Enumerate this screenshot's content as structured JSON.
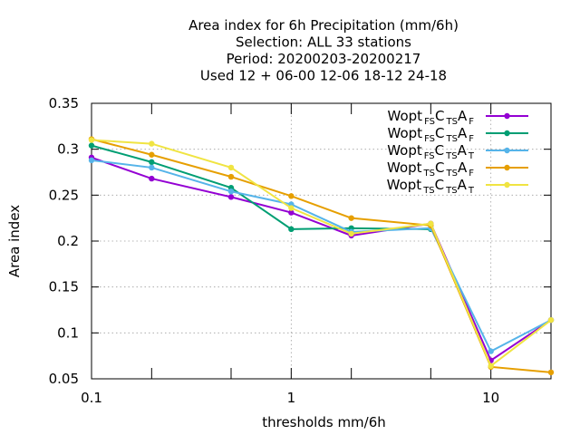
{
  "chart_data": {
    "type": "line",
    "title_lines": [
      "Area index  for 6h Precipitation (mm/6h)",
      "Selection: ALL     33 stations",
      "Period: 20200203-20200217",
      "Used  12 + 06-00 12-06 18-12 24-18"
    ],
    "xlabel": "thresholds mm/6h",
    "ylabel": "Area index",
    "x_scale": "log",
    "xlim": [
      0.1,
      20
    ],
    "ylim": [
      0.05,
      0.35
    ],
    "x_ticks": [
      0.1,
      1,
      10
    ],
    "x_tick_labels": [
      "0.1",
      "1",
      "10"
    ],
    "x_minor_ticks": [
      0.2,
      0.5,
      2,
      5,
      20
    ],
    "y_ticks": [
      0.05,
      0.1,
      0.15,
      0.2,
      0.25,
      0.3,
      0.35
    ],
    "y_tick_labels": [
      "0.05",
      "0.1",
      "0.15",
      "0.2",
      "0.25",
      "0.3",
      "0.35"
    ],
    "grid": true,
    "legend_position": "top-right",
    "x": [
      0.1,
      0.2,
      0.5,
      1,
      2,
      5,
      10,
      20
    ],
    "series": [
      {
        "name": "Wopt FS C TS A F",
        "legend": [
          {
            "t": "Wopt",
            "sub": false
          },
          {
            "t": "FS",
            "sub": true
          },
          {
            "t": "C",
            "sub": false
          },
          {
            "t": "TS",
            "sub": true
          },
          {
            "t": "A",
            "sub": false
          },
          {
            "t": "F",
            "sub": true
          }
        ],
        "color": "#9400d3",
        "values": [
          0.291,
          0.268,
          0.248,
          0.231,
          0.206,
          0.219,
          0.07,
          0.114
        ]
      },
      {
        "name": "Wopt FS C TS A F",
        "legend": [
          {
            "t": "Wopt",
            "sub": false
          },
          {
            "t": "FS",
            "sub": true
          },
          {
            "t": "C",
            "sub": false
          },
          {
            "t": "TS",
            "sub": true
          },
          {
            "t": "A",
            "sub": false
          },
          {
            "t": "F",
            "sub": true
          }
        ],
        "color": "#009e73",
        "values": [
          0.304,
          0.286,
          0.258,
          0.213,
          0.214,
          0.213,
          null,
          null
        ]
      },
      {
        "name": "Wopt FS C TS A T",
        "legend": [
          {
            "t": "Wopt",
            "sub": false
          },
          {
            "t": "FS",
            "sub": true
          },
          {
            "t": "C",
            "sub": false
          },
          {
            "t": "TS",
            "sub": true
          },
          {
            "t": "A",
            "sub": false
          },
          {
            "t": "T",
            "sub": true
          }
        ],
        "color": "#56b4e9",
        "values": [
          0.288,
          0.28,
          0.254,
          0.24,
          0.21,
          0.214,
          0.08,
          0.114
        ]
      },
      {
        "name": "Wopt TS C TS A F",
        "legend": [
          {
            "t": "Wopt",
            "sub": false
          },
          {
            "t": "TS",
            "sub": true
          },
          {
            "t": "C",
            "sub": false
          },
          {
            "t": "TS",
            "sub": true
          },
          {
            "t": "A",
            "sub": false
          },
          {
            "t": "F",
            "sub": true
          }
        ],
        "color": "#e69f00",
        "values": [
          0.311,
          0.294,
          0.27,
          0.249,
          0.225,
          0.217,
          0.063,
          0.057
        ]
      },
      {
        "name": "Wopt TS C TS A T",
        "legend": [
          {
            "t": "Wopt",
            "sub": false
          },
          {
            "t": "TS",
            "sub": true
          },
          {
            "t": "C",
            "sub": false
          },
          {
            "t": "TS",
            "sub": true
          },
          {
            "t": "A",
            "sub": false
          },
          {
            "t": "T",
            "sub": true
          }
        ],
        "color": "#f0e442",
        "values": [
          0.31,
          0.306,
          0.28,
          0.236,
          0.208,
          0.219,
          0.064,
          0.114
        ]
      }
    ]
  }
}
